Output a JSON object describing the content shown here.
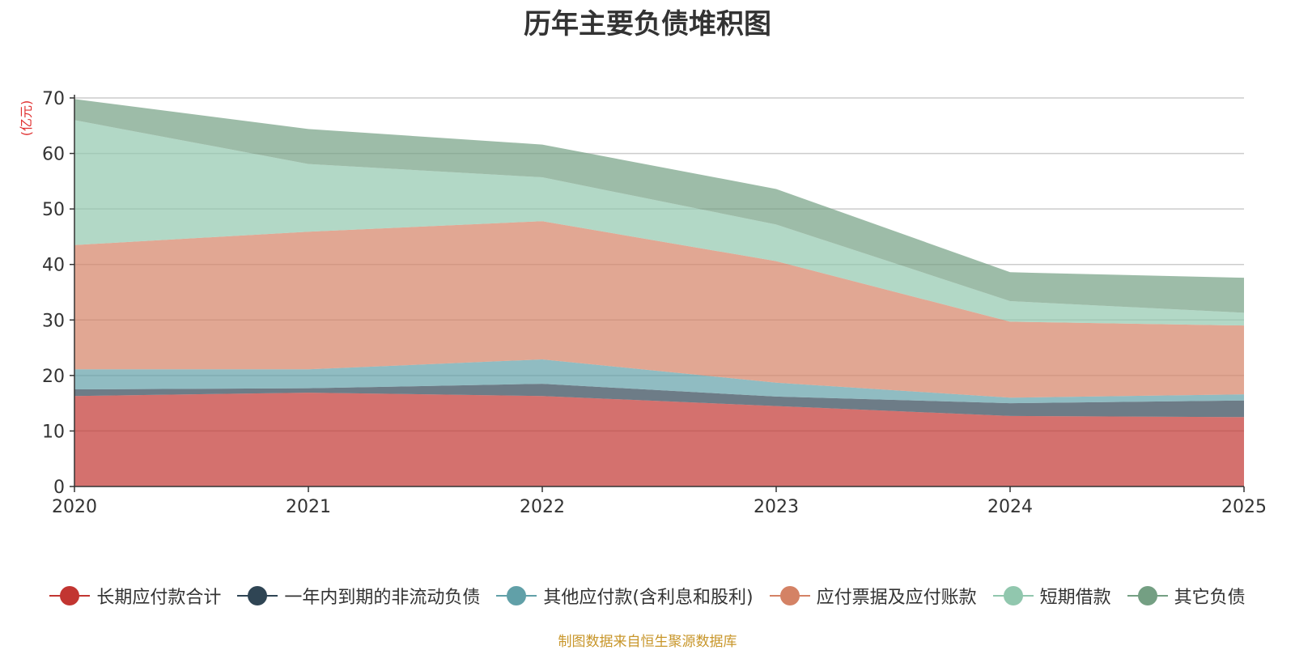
{
  "chart_data": {
    "type": "area",
    "stacked": true,
    "title": "历年主要负债堆积图",
    "y_unit_label": "(亿元)",
    "x": [
      "2020",
      "2021",
      "2022",
      "2023",
      "2024",
      "2025"
    ],
    "ylim": [
      0,
      70
    ],
    "yticks": [
      0,
      10,
      20,
      30,
      40,
      50,
      60,
      70
    ],
    "grid": true,
    "legend_position": "bottom",
    "series": [
      {
        "name": "长期应付款合计",
        "color": "#c23531",
        "values": [
          16.3,
          16.9,
          16.3,
          14.5,
          12.7,
          12.5
        ]
      },
      {
        "name": "一年内到期的非流动负债",
        "color": "#2f4554",
        "values": [
          1.2,
          0.8,
          2.2,
          1.7,
          2.3,
          3.0
        ]
      },
      {
        "name": "其他应付款(含利息和股利)",
        "color": "#61a0a8",
        "values": [
          3.6,
          3.4,
          4.4,
          2.5,
          1.0,
          1.1
        ]
      },
      {
        "name": "应付票据及应付账款",
        "color": "#d48265",
        "values": [
          22.4,
          24.8,
          24.9,
          21.9,
          13.7,
          12.4
        ]
      },
      {
        "name": "短期借款",
        "color": "#91c7ae",
        "values": [
          22.5,
          12.2,
          7.9,
          6.6,
          3.7,
          2.3
        ]
      },
      {
        "name": "其它负债",
        "color": "#749f83",
        "values": [
          3.8,
          6.3,
          5.9,
          6.4,
          5.2,
          6.3
        ]
      }
    ]
  },
  "footer": {
    "source": "制图数据来自恒生聚源数据库"
  }
}
